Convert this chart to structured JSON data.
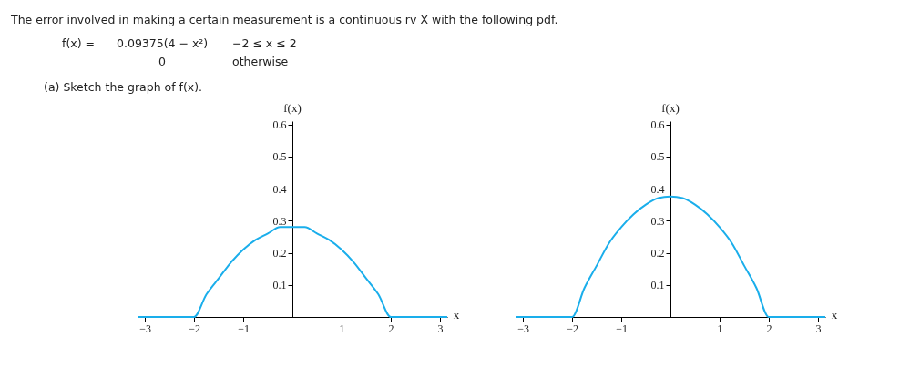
{
  "chart_data": [
    {
      "type": "line",
      "title": "The error involved in making a certain measurement is a continuous rv X with the following pdf.",
      "annotations": [
        "f(x) =",
        "0.09375(4 − x²)",
        "−2 ≤ x ≤ 2",
        "0",
        "otherwise",
        "(a) Sketch the graph of f(x)."
      ],
      "xlabel": "x",
      "ylabel": "f(x)",
      "x": [
        -3.15,
        -2,
        -1.75,
        -1.5,
        -1.25,
        -1,
        -0.75,
        -0.5,
        -0.25,
        0,
        0.25,
        0.5,
        0.75,
        1,
        1.25,
        1.5,
        1.75,
        2,
        3.15
      ],
      "series": [
        {
          "color": "#1aaeeb",
          "values": [
            0,
            0,
            0.07,
            0.12,
            0.17,
            0.21,
            0.24,
            0.26,
            0.28,
            0.28,
            0.28,
            0.26,
            0.24,
            0.21,
            0.17,
            0.12,
            0.07,
            0,
            0
          ]
        }
      ],
      "xlim": [
        -3.15,
        3.15
      ],
      "ylim": [
        0,
        0.61
      ],
      "xticks": [
        -3,
        -2,
        -1,
        1,
        2,
        3
      ],
      "yticks": [
        0.1,
        0.2,
        0.3,
        0.4,
        0.5,
        0.6
      ]
    },
    {
      "type": "line",
      "xlabel": "x",
      "ylabel": "f(x)",
      "x": [
        -3.15,
        -2,
        -1.75,
        -1.5,
        -1.25,
        -1,
        -0.75,
        -0.5,
        -0.25,
        0,
        0.25,
        0.5,
        0.75,
        1,
        1.25,
        1.5,
        1.75,
        2,
        3.15
      ],
      "series": [
        {
          "color": "#1aaeeb",
          "values": [
            0,
            0,
            0.09,
            0.16,
            0.23,
            0.28,
            0.32,
            0.35,
            0.37,
            0.375,
            0.37,
            0.35,
            0.32,
            0.28,
            0.23,
            0.16,
            0.09,
            0,
            0
          ]
        }
      ],
      "xlim": [
        -3.15,
        3.15
      ],
      "ylim": [
        0,
        0.61
      ],
      "xticks": [
        -3,
        -2,
        -1,
        1,
        2,
        3
      ],
      "yticks": [
        0.1,
        0.2,
        0.3,
        0.4,
        0.5,
        0.6
      ]
    }
  ]
}
